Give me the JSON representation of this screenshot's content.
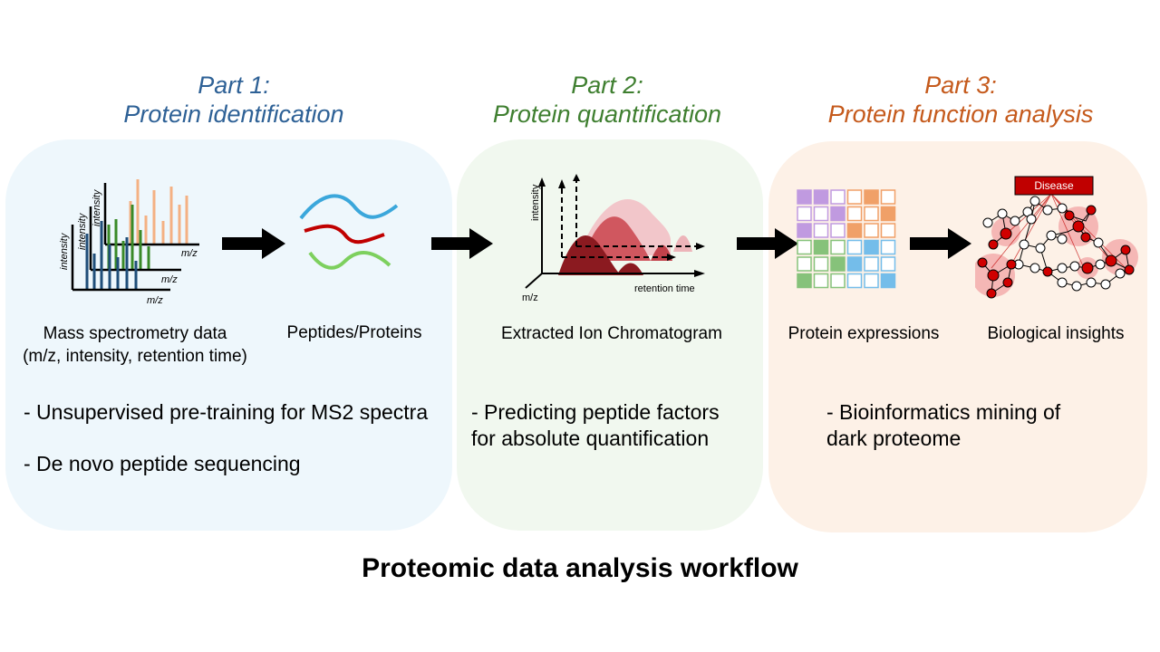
{
  "parts": [
    {
      "heading": "Part 1:",
      "title": "Protein identification",
      "color": "#2E6196"
    },
    {
      "heading": "Part 2:",
      "title": "Protein quantification",
      "color": "#3F7F30"
    },
    {
      "heading": "Part 3:",
      "title": "Protein function analysis",
      "color": "#C55A1C"
    }
  ],
  "panels": {
    "part1_bg": "#EEF7FC",
    "part2_bg": "#F1F8EF",
    "part3_bg": "#FDF1E7"
  },
  "labels": {
    "ms_data_line1": "Mass spectrometry data",
    "ms_data_line2": "(m/z,  intensity, retention time)",
    "peptides": "Peptides/Proteins",
    "xic": "Extracted Ion Chromatogram",
    "expressions": "Protein expressions",
    "insights": "Biological insights"
  },
  "axis_text": {
    "intensity": "intensity",
    "mz": "m/z",
    "retention_time": "retention time"
  },
  "disease_label": "Disease",
  "bullets": {
    "part1": [
      "- Unsupervised pre-training for MS2 spectra",
      "- De novo peptide sequencing"
    ],
    "part2": [
      "-   Predicting peptide factors",
      "for absolute quantification"
    ],
    "part3": [
      "-   Bioinformatics mining of",
      "dark proteome"
    ]
  },
  "footer": "Proteomic data analysis workflow"
}
